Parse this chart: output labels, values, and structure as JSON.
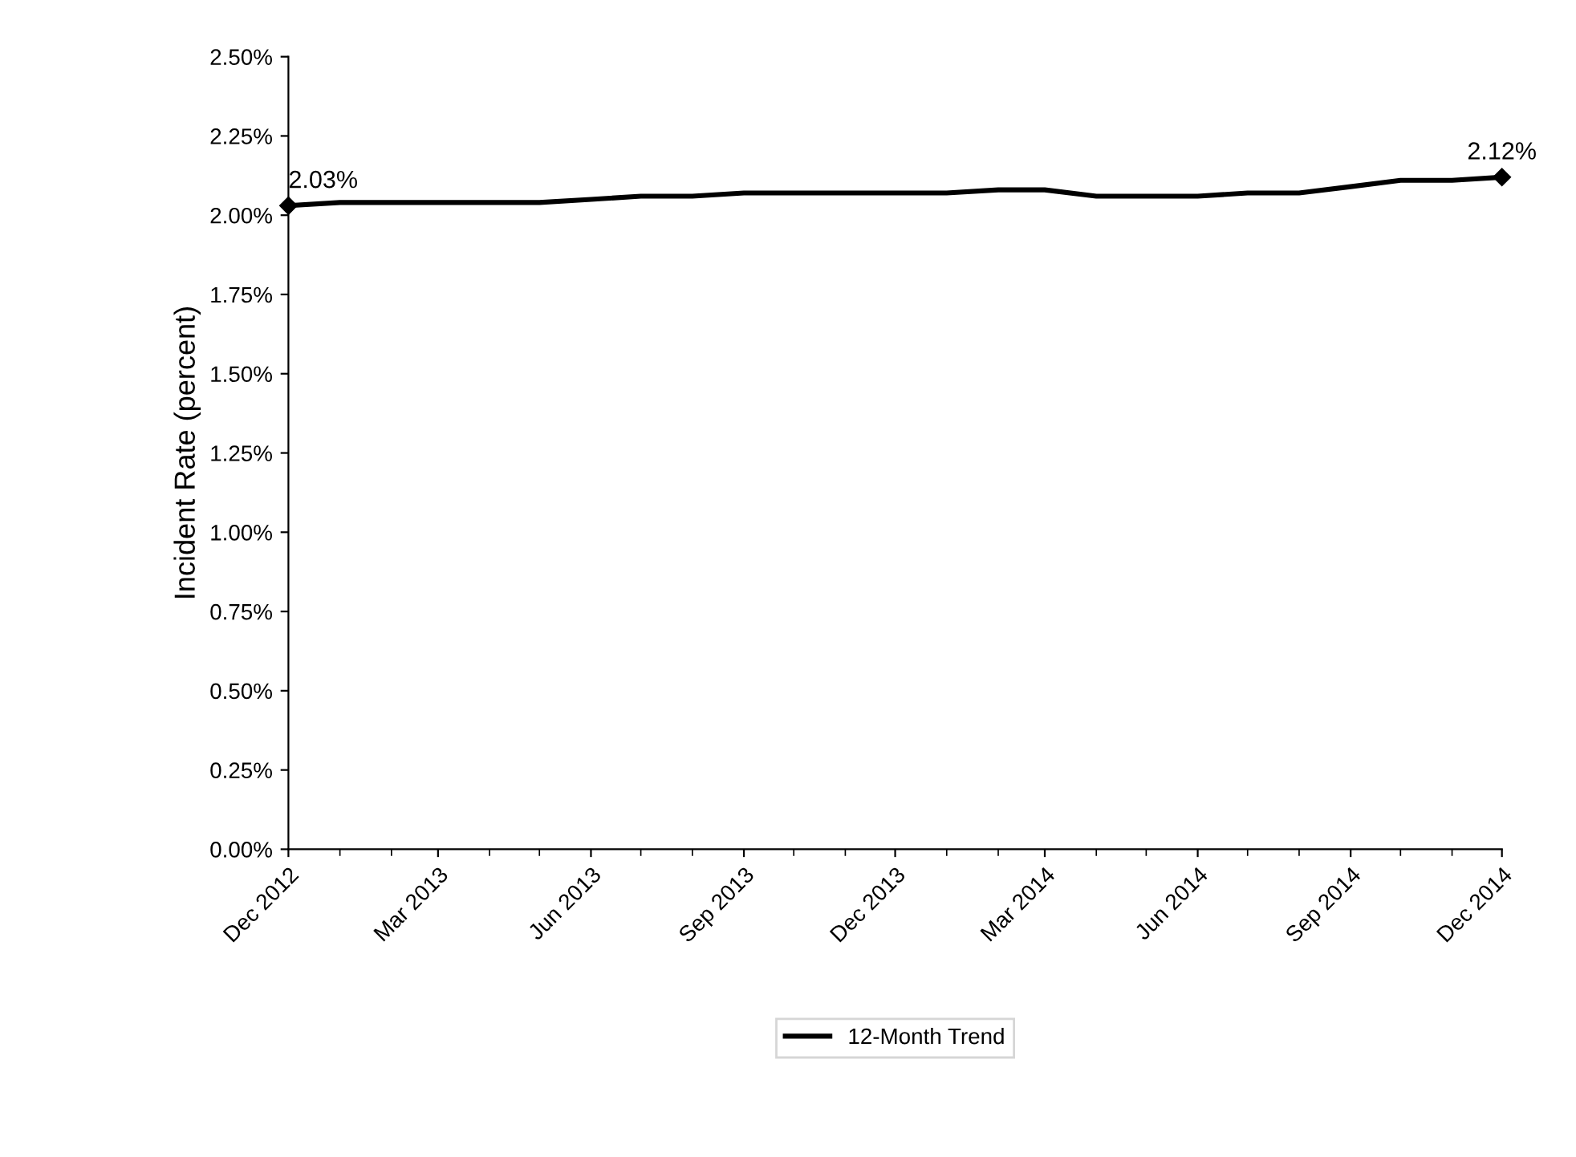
{
  "chart_data": {
    "type": "line",
    "ylabel": "Incident Rate (percent)",
    "x": [
      "2012-12",
      "2013-01",
      "2013-02",
      "2013-03",
      "2013-04",
      "2013-05",
      "2013-06",
      "2013-07",
      "2013-08",
      "2013-09",
      "2013-10",
      "2013-11",
      "2013-12",
      "2014-01",
      "2014-02",
      "2014-03",
      "2014-04",
      "2014-05",
      "2014-06",
      "2014-07",
      "2014-08",
      "2014-09",
      "2014-10",
      "2014-11",
      "2014-12"
    ],
    "series": [
      {
        "name": "12-Month Trend",
        "color": "#000000",
        "values": [
          2.03,
          2.04,
          2.04,
          2.04,
          2.04,
          2.04,
          2.05,
          2.06,
          2.06,
          2.07,
          2.07,
          2.07,
          2.07,
          2.07,
          2.08,
          2.08,
          2.06,
          2.06,
          2.06,
          2.07,
          2.07,
          2.09,
          2.11,
          2.11,
          2.12
        ],
        "value_labels": [
          "2.03%",
          null,
          null,
          null,
          null,
          null,
          null,
          null,
          null,
          null,
          null,
          null,
          null,
          null,
          null,
          null,
          null,
          null,
          null,
          null,
          null,
          null,
          null,
          null,
          "2.12%"
        ]
      }
    ],
    "xlim": [
      "2012-12",
      "2014-12"
    ],
    "xticks": [
      {
        "value": "2012-12",
        "label": "Dec 2012"
      },
      {
        "value": "2013-03",
        "label": "Mar 2013"
      },
      {
        "value": "2013-06",
        "label": "Jun 2013"
      },
      {
        "value": "2013-09",
        "label": "Sep 2013"
      },
      {
        "value": "2013-12",
        "label": "Dec 2013"
      },
      {
        "value": "2014-03",
        "label": "Mar 2014"
      },
      {
        "value": "2014-06",
        "label": "Jun 2014"
      },
      {
        "value": "2014-09",
        "label": "Sep 2014"
      },
      {
        "value": "2014-12",
        "label": "Dec 2014"
      }
    ],
    "ylim": [
      0,
      2.5
    ],
    "yticks": [
      {
        "value": 0,
        "label": "0.00%"
      },
      {
        "value": 0.25,
        "label": "0.25%"
      },
      {
        "value": 0.5,
        "label": "0.50%"
      },
      {
        "value": 0.75,
        "label": "0.75%"
      },
      {
        "value": 1,
        "label": "1.00%"
      },
      {
        "value": 1.25,
        "label": "1.25%"
      },
      {
        "value": 1.5,
        "label": "1.50%"
      },
      {
        "value": 1.75,
        "label": "1.75%"
      },
      {
        "value": 2,
        "label": "2.00%"
      },
      {
        "value": 2.25,
        "label": "2.25%"
      },
      {
        "value": 2.5,
        "label": "2.50%"
      }
    ],
    "grid": false,
    "legend": "bottom",
    "line_style": "solid"
  }
}
